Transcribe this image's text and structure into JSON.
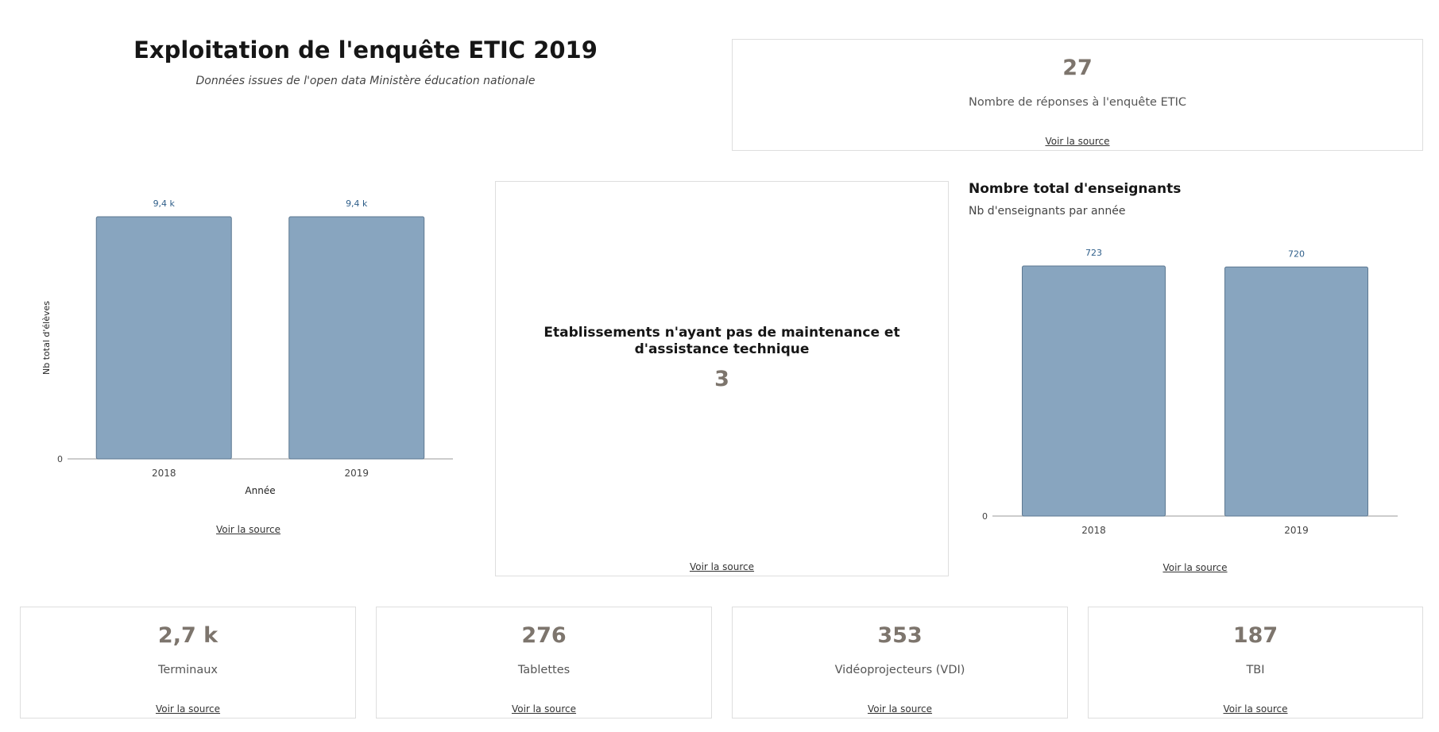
{
  "header": {
    "title": "Exploitation de l'enquête ETIC 2019",
    "subtitle": "Données issues de l'open data Ministère éducation nationale"
  },
  "top_kpi": {
    "value": "27",
    "label": "Nombre de réponses à l'enquête ETIC",
    "link": "Voir la source"
  },
  "left_chart": {
    "link": "Voir la source"
  },
  "middle_card": {
    "title": "Etablissements n'ayant pas de maintenance et d'assistance technique",
    "value": "3",
    "link": "Voir la source"
  },
  "right_chart": {
    "title": "Nombre total d'enseignants",
    "subtitle": "Nb d'enseignants par année",
    "link": "Voir la source"
  },
  "bottom_kpis": [
    {
      "value": "2,7 k",
      "label": "Terminaux",
      "link": "Voir la source"
    },
    {
      "value": "276",
      "label": "Tablettes",
      "link": "Voir la source"
    },
    {
      "value": "353",
      "label": "Vidéoprojecteurs (VDI)",
      "link": "Voir la source"
    },
    {
      "value": "187",
      "label": "TBI",
      "link": "Voir la source"
    }
  ],
  "colors": {
    "bar": "#88a5bf",
    "bar_stroke": "#5d7891",
    "kpi_value": "#7d756d",
    "data_label": "#2f5f8a"
  },
  "chart_data": [
    {
      "type": "bar",
      "categories": [
        "2018",
        "2019"
      ],
      "values": [
        9400,
        9400
      ],
      "data_labels": [
        "9,4 k",
        "9,4 k"
      ],
      "title": "",
      "xlabel": "Année",
      "ylabel": "Nb total d'élèves",
      "y_tick_labels": [
        "0"
      ],
      "ylim": [
        0,
        9400
      ],
      "grid": false
    },
    {
      "type": "bar",
      "categories": [
        "2018",
        "2019"
      ],
      "values": [
        723,
        720
      ],
      "data_labels": [
        "723",
        "720"
      ],
      "title": "Nombre total d'enseignants",
      "subtitle": "Nb d'enseignants par année",
      "xlabel": "",
      "ylabel": "",
      "y_tick_labels": [
        "0"
      ],
      "ylim": [
        0,
        723
      ],
      "grid": false
    }
  ]
}
